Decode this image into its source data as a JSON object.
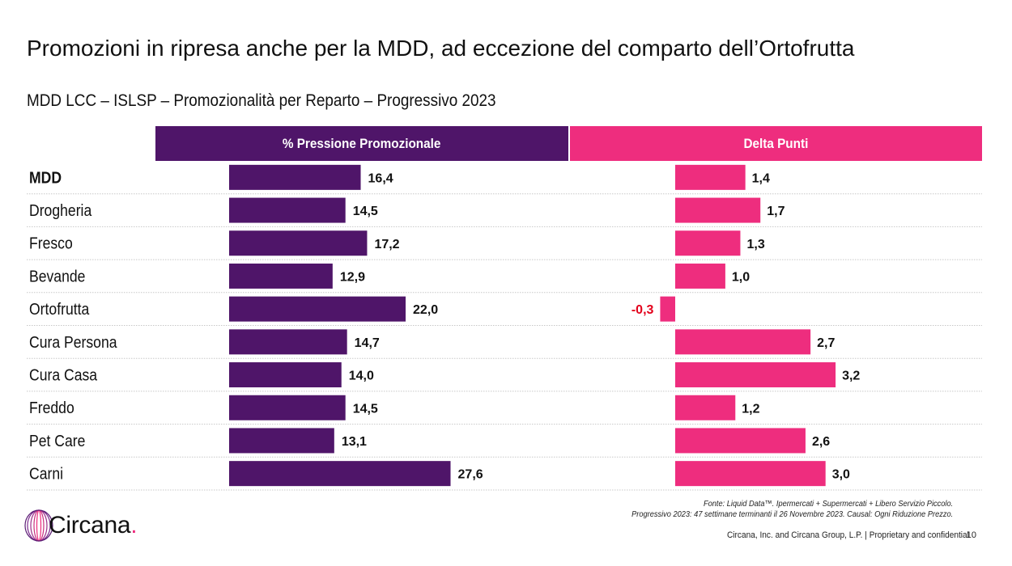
{
  "title": "Promozioni in ripresa anche per la MDD, ad eccezione del comparto dell’Ortofrutta",
  "subtitle": "MDD LCC – ISLSP – Promozionalità per Reparto – Progressivo 2023",
  "colors": {
    "purple": "#4f1569",
    "pink": "#ee2d7e",
    "negative_label": "#e3001b",
    "gridline": "#c8c8c8"
  },
  "chart_data": {
    "type": "bar",
    "orientation": "horizontal",
    "categories": [
      "MDD",
      "Drogheria",
      "Fresco",
      "Bevande",
      "Ortofrutta",
      "Cura Persona",
      "Cura Casa",
      "Freddo",
      "Pet Care",
      "Carni"
    ],
    "bold_categories": [
      "MDD"
    ],
    "series": [
      {
        "name": "% Pressione Promozionale",
        "values": [
          16.4,
          14.5,
          17.2,
          12.9,
          22.0,
          14.7,
          14.0,
          14.5,
          13.1,
          27.6
        ],
        "labels": [
          "16,4",
          "14,5",
          "17,2",
          "12,9",
          "22,0",
          "14,7",
          "14,0",
          "14,5",
          "13,1",
          "27,6"
        ],
        "color": "#4f1569"
      },
      {
        "name": "Delta Punti",
        "values": [
          1.4,
          1.7,
          1.3,
          1.0,
          -0.3,
          2.7,
          3.2,
          1.2,
          2.6,
          3.0
        ],
        "labels": [
          "1,4",
          "1,7",
          "1,3",
          "1,0",
          "-0,3",
          "2,7",
          "3,2",
          "1,2",
          "2,6",
          "3,0"
        ],
        "color": "#ee2d7e"
      }
    ]
  },
  "footnote": {
    "line1": "Fonte: Liquid Data™. Ipermercati + Supermercati + Libero Servizio Piccolo.",
    "line2": "Progressivo 2023: 47 settimane terminanti il 26 Novembre 2023. Causal: Ogni Riduzione Prezzo."
  },
  "logo": {
    "name": "circana-logo-icon",
    "text": "Circana",
    "dot": "."
  },
  "legal": "Circana, Inc. and Circana Group, L.P. |  Proprietary and confidential",
  "page_number": "10"
}
